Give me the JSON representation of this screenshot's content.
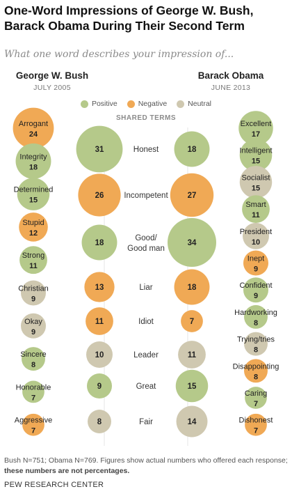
{
  "header": {
    "title": "One-Word Impressions of George W. Bush, Barack Obama During Their Second Term",
    "subtitle": "What one word describes your impression of..."
  },
  "columns": {
    "bush": {
      "name": "George W. Bush",
      "date": "JULY 2005"
    },
    "obama": {
      "name": "Barack Obama",
      "date": "JUNE 2013"
    },
    "shared_title": "SHARED TERMS"
  },
  "legend": [
    {
      "label": "Positive",
      "color": "#b5c98a"
    },
    {
      "label": "Negative",
      "color": "#f0a955"
    },
    {
      "label": "Neutral",
      "color": "#cfc8b0"
    }
  ],
  "colors": {
    "positive": "#b5c98a",
    "negative": "#f0a955",
    "neutral": "#cfc8b0"
  },
  "chart_data": {
    "type": "bubble",
    "title": "One-Word Impressions of George W. Bush, Barack Obama During Their Second Term",
    "bush_only": [
      {
        "word": "Arrogant",
        "count": 24,
        "sentiment": "negative"
      },
      {
        "word": "Integrity",
        "count": 18,
        "sentiment": "positive"
      },
      {
        "word": "Determined",
        "count": 15,
        "sentiment": "positive"
      },
      {
        "word": "Stupid",
        "count": 12,
        "sentiment": "negative"
      },
      {
        "word": "Strong",
        "count": 11,
        "sentiment": "positive"
      },
      {
        "word": "Christian",
        "count": 9,
        "sentiment": "neutral"
      },
      {
        "word": "Okay",
        "count": 9,
        "sentiment": "neutral"
      },
      {
        "word": "Sincere",
        "count": 8,
        "sentiment": "positive"
      },
      {
        "word": "Honorable",
        "count": 7,
        "sentiment": "positive"
      },
      {
        "word": "Aggressive",
        "count": 7,
        "sentiment": "negative"
      }
    ],
    "shared": [
      {
        "word": "Honest",
        "bush": 31,
        "obama": 18,
        "sentiment": "positive"
      },
      {
        "word": "Incompetent",
        "bush": 26,
        "obama": 27,
        "sentiment": "negative"
      },
      {
        "word": "Good/ Good man",
        "bush": 18,
        "obama": 34,
        "sentiment": "positive"
      },
      {
        "word": "Liar",
        "bush": 13,
        "obama": 18,
        "sentiment": "negative"
      },
      {
        "word": "Idiot",
        "bush": 11,
        "obama": 7,
        "sentiment": "negative"
      },
      {
        "word": "Leader",
        "bush": 10,
        "obama": 11,
        "sentiment": "neutral"
      },
      {
        "word": "Great",
        "bush": 9,
        "obama": 15,
        "sentiment": "positive"
      },
      {
        "word": "Fair",
        "bush": 8,
        "obama": 14,
        "sentiment": "neutral"
      }
    ],
    "obama_only": [
      {
        "word": "Excellent",
        "count": 17,
        "sentiment": "positive"
      },
      {
        "word": "Intelligent",
        "count": 15,
        "sentiment": "positive"
      },
      {
        "word": "Socialist",
        "count": 15,
        "sentiment": "neutral"
      },
      {
        "word": "Smart",
        "count": 11,
        "sentiment": "positive"
      },
      {
        "word": "President",
        "count": 10,
        "sentiment": "neutral"
      },
      {
        "word": "Inept",
        "count": 9,
        "sentiment": "negative"
      },
      {
        "word": "Confident",
        "count": 9,
        "sentiment": "positive"
      },
      {
        "word": "Hardworking",
        "count": 8,
        "sentiment": "positive"
      },
      {
        "word": "Trying/tries",
        "count": 8,
        "sentiment": "neutral"
      },
      {
        "word": "Disappointing",
        "count": 8,
        "sentiment": "negative"
      },
      {
        "word": "Caring",
        "count": 7,
        "sentiment": "positive"
      },
      {
        "word": "Dishonest",
        "count": 7,
        "sentiment": "negative"
      }
    ]
  },
  "footnote": {
    "text": "Bush N=751; Obama N=769. Figures show actual numbers who offered each response; ",
    "bold": "these numbers are not percentages."
  },
  "source": "PEW RESEARCH CENTER"
}
